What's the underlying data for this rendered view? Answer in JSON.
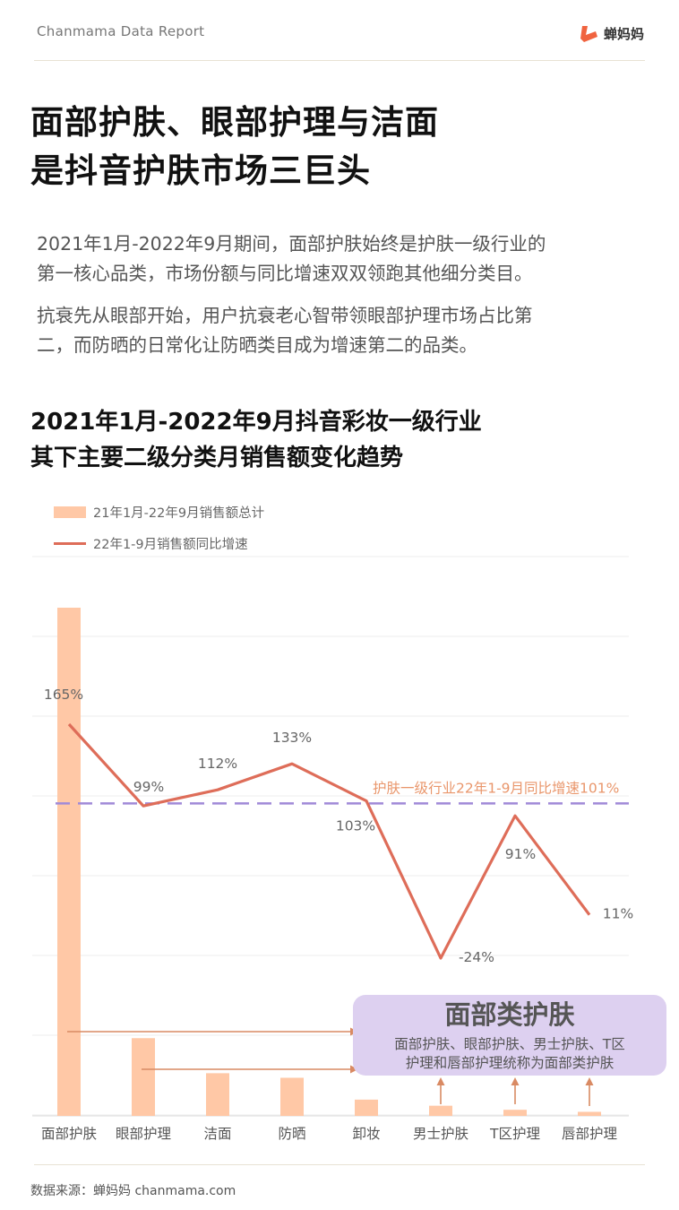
{
  "header": {
    "report_label": "Chanmama Data Report",
    "brand_name": "蝉妈妈",
    "brand_color": "#f0633f"
  },
  "title": {
    "line1": "面部护肤、眼部护理与洁面",
    "line2": "是抖音护肤市场三巨头"
  },
  "paragraphs": [
    {
      "line1": "2021年1月-2022年9月期间，面部护肤始终是护肤一级行业的",
      "line2": "第一核心品类，市场份额与同比增速双双领跑其他细分类目。"
    },
    {
      "line1": "抗衰先从眼部开始，用户抗衰老心智带领眼部护理市场占比第",
      "line2": "二，而防晒的日常化让防晒类目成为增速第二的品类。"
    }
  ],
  "chart_data": {
    "type": "bar",
    "title": "2021年1月-2022年9月抖音彩妆一级行业",
    "subtitle": "其下主要二级分类月销售额变化趋势",
    "categories": [
      "面部护肤",
      "眼部护理",
      "洁面",
      "防晒",
      "卸妆",
      "男士护肤",
      "T区护理",
      "唇部护理"
    ],
    "series": [
      {
        "name": "21年1月-22年9月销售额总计",
        "type": "bar",
        "color": "#ffc8a6",
        "values": [
          100,
          15.3,
          8.4,
          7.5,
          3.2,
          2.0,
          1.2,
          0.8
        ]
      },
      {
        "name": "22年1-9月销售额同比增速",
        "type": "line",
        "color": "#de6d59",
        "values": [
          165,
          99,
          112,
          133,
          103,
          -24,
          91,
          11
        ],
        "labels": [
          "165%",
          "99%",
          "112%",
          "133%",
          "103%",
          "-24%",
          "91%",
          "11%"
        ]
      }
    ],
    "reference_line": {
      "value": 101,
      "label": "护肤一级行业22年1-9月同比增速101%",
      "color": "#a08ad8",
      "label_color": "#e9966b"
    },
    "annotation": {
      "title": "面部类护肤",
      "text_line1": "面部护肤、眼部护肤、男士护肤、T区",
      "text_line2": "护理和唇部护理统称为面部类护肤",
      "box_color": "#ddd0f0",
      "arrow_color": "#d98a63",
      "targets": [
        "面部护肤",
        "眼部护理",
        "男士护肤",
        "T区护理",
        "唇部护理"
      ]
    },
    "legend_position": "top-left",
    "grid": true,
    "yaxis_labels": false
  },
  "source": "数据来源：蝉妈妈 chanmama.com"
}
